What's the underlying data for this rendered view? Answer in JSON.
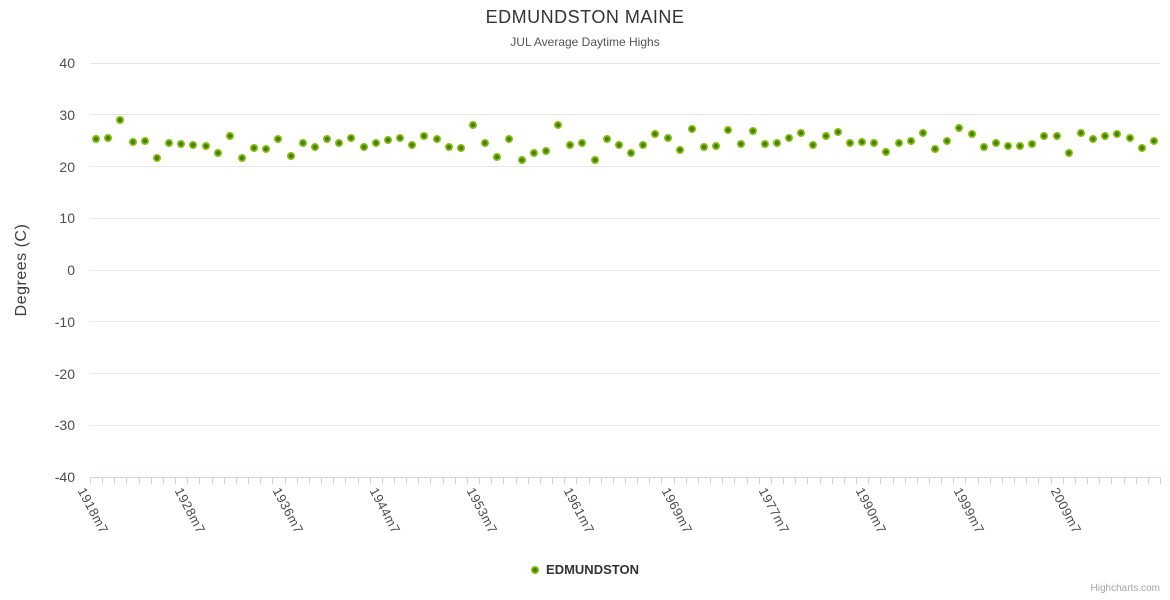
{
  "chart": {
    "title": "EDMUNDSTON MAINE",
    "subtitle": "JUL Average Daytime Highs",
    "y_axis_title": "Degrees (C)",
    "legend_label": "EDMUNDSTON",
    "credits": "Highcharts.com"
  },
  "colors": {
    "point_outer": "#85c10e",
    "point_inner": "#4a7d05",
    "grid": "#e6e6e6",
    "axis": "#ccd6eb",
    "title": "#333333",
    "subtitle": "#555555",
    "tick_label": "#4d4d4d",
    "legend_text": "#333333",
    "credits": "#a5a5a5"
  },
  "chart_data": {
    "type": "scatter",
    "title": "EDMUNDSTON MAINE",
    "subtitle": "JUL Average Daytime Highs",
    "xlabel": "",
    "ylabel": "Degrees (C)",
    "ylim": [
      -40,
      40
    ],
    "grid": "horizontal-only",
    "legend_position": "bottom-center",
    "y_ticks": [
      {
        "label": "40",
        "value": 40
      },
      {
        "label": "30",
        "value": 30
      },
      {
        "label": "20",
        "value": 20
      },
      {
        "label": "10",
        "value": 10
      },
      {
        "label": "0",
        "value": 0
      },
      {
        "label": "-10",
        "value": -10
      },
      {
        "label": "-20",
        "value": -20
      },
      {
        "label": "-30",
        "value": -30
      },
      {
        "label": "-40",
        "value": -40
      }
    ],
    "x_tick_labels": [
      "1918m7",
      "1928m7",
      "1936m7",
      "1944m7",
      "1953m7",
      "1961m7",
      "1969m7",
      "1977m7",
      "1990m7",
      "1999m7",
      "2009m7"
    ],
    "x_label_step": 8,
    "series": [
      {
        "name": "EDMUNDSTON",
        "color": "#85c10e",
        "values": [
          25.4,
          25.6,
          29.0,
          24.8,
          25.0,
          21.7,
          24.5,
          24.4,
          24.2,
          24.0,
          22.6,
          25.9,
          21.6,
          23.5,
          23.3,
          25.3,
          22.0,
          24.6,
          23.7,
          25.4,
          24.5,
          25.5,
          23.7,
          24.6,
          25.1,
          25.5,
          24.2,
          25.9,
          25.3,
          23.7,
          23.5,
          28.0,
          24.6,
          21.9,
          25.4,
          21.3,
          22.7,
          23.0,
          28.0,
          24.2,
          24.6,
          21.3,
          25.3,
          24.1,
          22.7,
          24.2,
          26.2,
          25.6,
          23.1,
          27.2,
          23.7,
          24.0,
          27.0,
          24.3,
          26.8,
          24.4,
          24.6,
          25.5,
          26.4,
          24.1,
          25.9,
          26.7,
          24.5,
          24.8,
          24.6,
          22.8,
          24.6,
          25.0,
          26.5,
          23.3,
          24.9,
          27.4,
          26.2,
          23.7,
          24.6,
          24.0,
          24.0,
          24.3,
          25.8,
          25.8,
          22.6,
          26.5,
          25.4,
          25.8,
          26.2,
          25.6,
          23.6,
          25.0
        ]
      }
    ],
    "credits": "Highcharts.com"
  }
}
